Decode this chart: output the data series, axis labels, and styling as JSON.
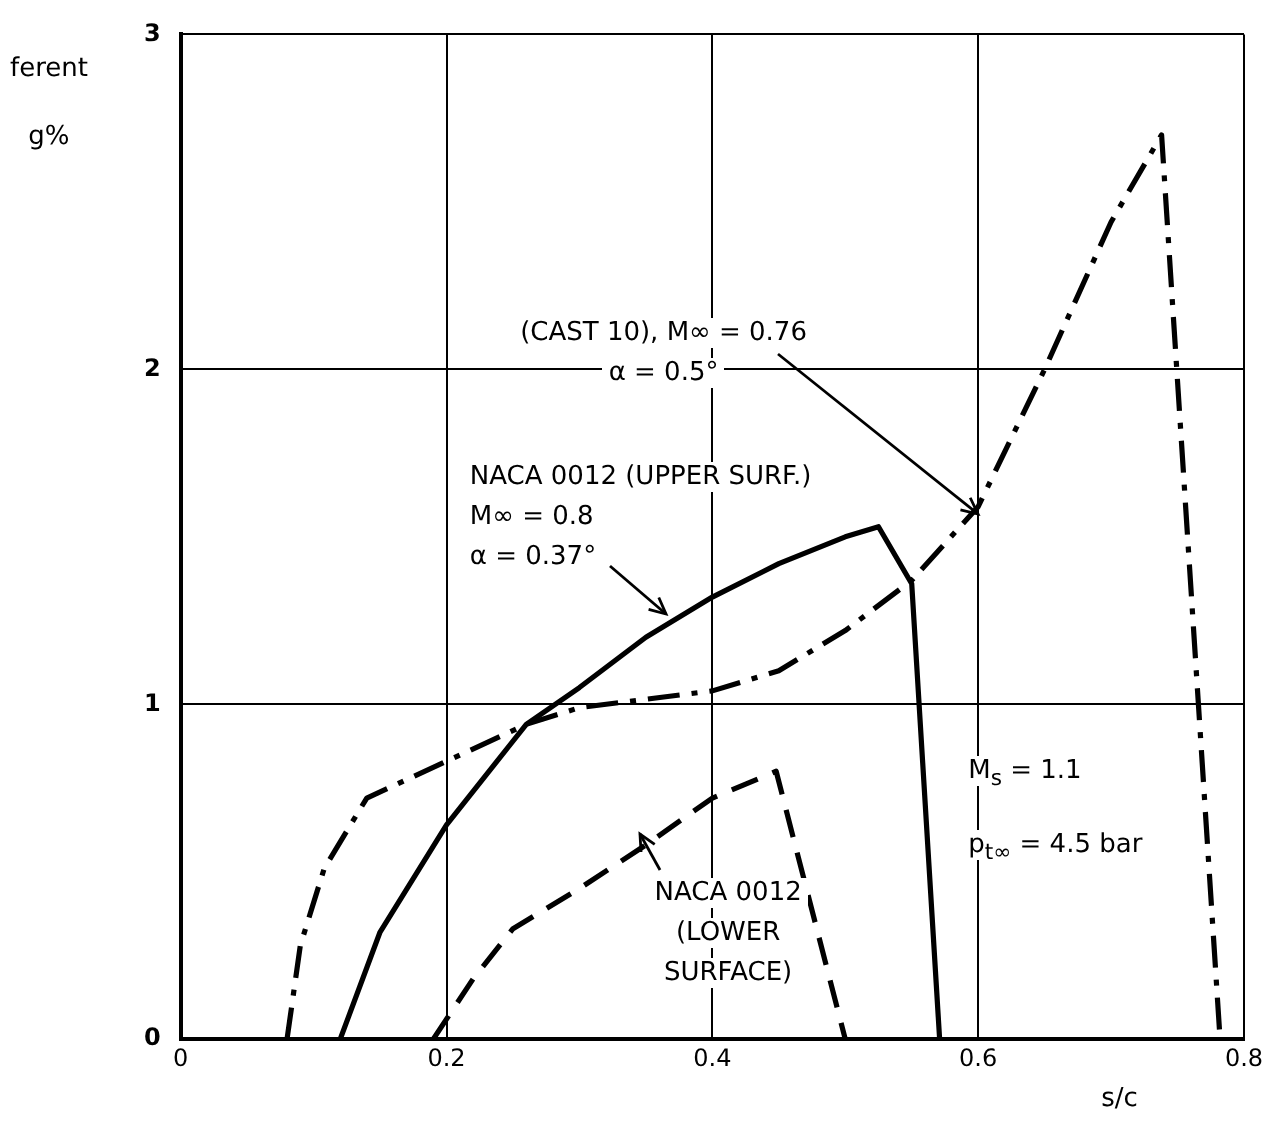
{
  "chart_data": {
    "type": "line",
    "ylabel": "ferent\ng%",
    "xlabel": "s/c",
    "xlim": [
      0,
      0.8
    ],
    "xticks": [
      0,
      0.2,
      0.4,
      0.6,
      0.8
    ],
    "ylim": [
      0,
      3
    ],
    "yticks": [
      0,
      1,
      2,
      3
    ],
    "grid": true,
    "legend": false,
    "marker": "none",
    "series": [
      {
        "color": "#000000",
        "line_style": "dashdot",
        "x": [
          0.08,
          0.09,
          0.108,
          0.14,
          0.2,
          0.26,
          0.3,
          0.4,
          0.45,
          0.5,
          0.55,
          0.6,
          0.65,
          0.7,
          0.738,
          0.782
        ],
        "values": [
          0,
          0.28,
          0.51,
          0.72,
          0.83,
          0.94,
          0.99,
          1.04,
          1.1,
          1.22,
          1.37,
          1.59,
          2.0,
          2.44,
          2.7,
          0
        ]
      },
      {
        "color": "#000000",
        "line_style": "solid",
        "x": [
          0.12,
          0.15,
          0.2,
          0.26,
          0.3,
          0.35,
          0.4,
          0.45,
          0.5,
          0.525,
          0.55,
          0.571
        ],
        "values": [
          0,
          0.32,
          0.64,
          0.94,
          1.05,
          1.2,
          1.32,
          1.42,
          1.5,
          1.53,
          1.36,
          0
        ]
      },
      {
        "color": "#000000",
        "line_style": "dashed",
        "x": [
          0.19,
          0.22,
          0.25,
          0.3,
          0.35,
          0.4,
          0.448,
          0.5
        ],
        "values": [
          0,
          0.18,
          0.33,
          0.45,
          0.58,
          0.72,
          0.8,
          0
        ]
      }
    ],
    "annotations": [
      {
        "text": "(CAST 10), M∞ = 0.76\nα = 0.5°",
        "x": 0.6,
        "y": 1.57
      },
      {
        "text": "NACA 0012 (UPPER SURF.)\nM∞ = 0.8\nα = 0.37°",
        "x": 0.365,
        "y": 1.27
      },
      {
        "text": "NACA 0012\n(LOWER\nSURFACE)",
        "x": 0.346,
        "y": 0.61
      },
      "M$_{s}$ = 1.1\np$_{t∞}$ = 4.5 bar"
    ]
  }
}
